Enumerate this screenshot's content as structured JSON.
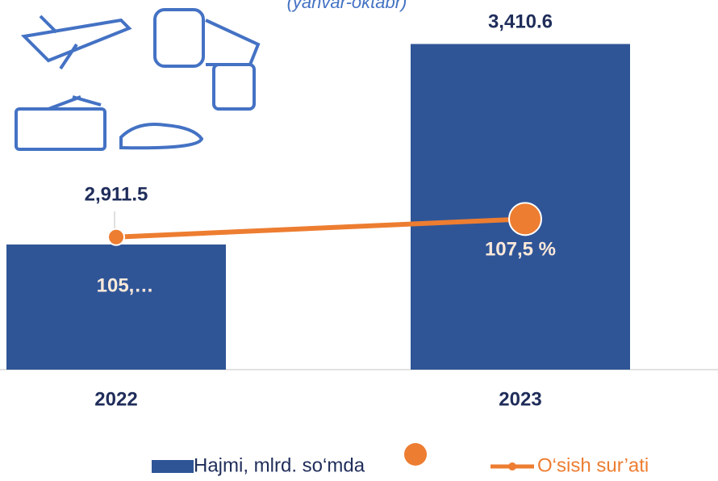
{
  "chart_data": {
    "type": "bar_line",
    "subtitle": "(yanvar-oktabr)",
    "categories": [
      "2022",
      "2023"
    ],
    "ylim": [
      2600,
      3500
    ],
    "y2lim": [
      90,
      132
    ],
    "series": [
      {
        "name": "Hajmi, mlrd. so‘mda",
        "type": "bar",
        "color": "#2f5597",
        "values": [
          2911.5,
          3410.6
        ],
        "value_labels": [
          "2,911.5",
          "3,410.6"
        ]
      },
      {
        "name": "O‘sish sur’ati",
        "type": "line",
        "axis": "y2",
        "color": "#ed7d31",
        "values": [
          105.4,
          107.5
        ],
        "value_labels": [
          "105,…",
          "107,5 %"
        ]
      }
    ]
  }
}
